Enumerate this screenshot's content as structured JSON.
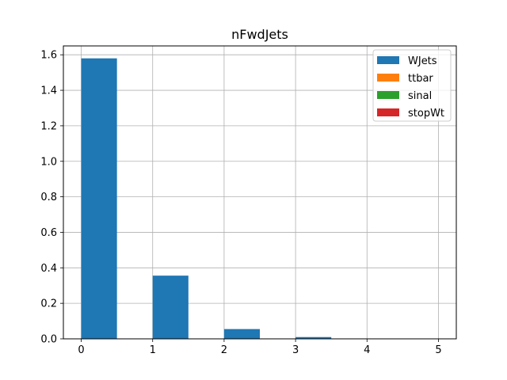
{
  "chart_data": {
    "type": "bar",
    "title": "nFwdJets",
    "xlabel": "",
    "ylabel": "",
    "xlim": [
      -0.25,
      5.25
    ],
    "ylim": [
      0,
      1.65
    ],
    "x_ticks": [
      0,
      1,
      2,
      3,
      4,
      5
    ],
    "y_ticks": [
      0.0,
      0.2,
      0.4,
      0.6,
      0.8,
      1.0,
      1.2,
      1.4,
      1.6
    ],
    "x_tick_labels": [
      "0",
      "1",
      "2",
      "3",
      "4",
      "5"
    ],
    "y_tick_labels": [
      "0.0",
      "0.2",
      "0.4",
      "0.6",
      "0.8",
      "1.0",
      "1.2",
      "1.4",
      "1.6"
    ],
    "grid": true,
    "legend_placement": "top-right",
    "bin_edges": [
      0,
      0.5,
      1,
      1.5,
      2,
      2.5,
      3,
      3.5,
      4,
      4.5,
      5
    ],
    "series": [
      {
        "name": "WJets",
        "color": "#1f77b4",
        "values": [
          1.58,
          0,
          0.356,
          0,
          0.055,
          0,
          0.01,
          0,
          0.002,
          0
        ]
      },
      {
        "name": "ttbar",
        "color": "#ff7f0e",
        "values": [
          0,
          0,
          0,
          0,
          0,
          0,
          0,
          0,
          0,
          0
        ]
      },
      {
        "name": "sinal",
        "color": "#2ca02c",
        "values": [
          0,
          0,
          0,
          0,
          0,
          0,
          0,
          0,
          0,
          0
        ]
      },
      {
        "name": "stopWt",
        "color": "#d62728",
        "values": [
          0,
          0,
          0,
          0,
          0,
          0,
          0,
          0,
          0,
          0
        ]
      }
    ]
  }
}
